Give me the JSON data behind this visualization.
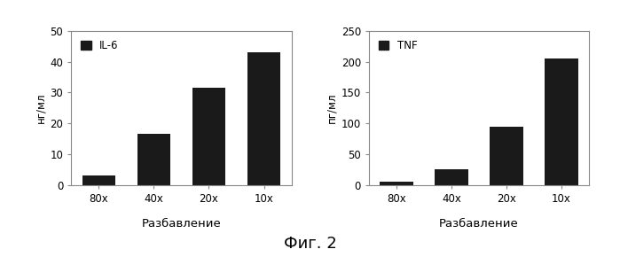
{
  "chart1": {
    "categories": [
      "80x",
      "40x",
      "20x",
      "10x"
    ],
    "values": [
      3.2,
      16.5,
      31.5,
      43.0
    ],
    "ylabel": "нг/мл",
    "xlabel": "Разбавление",
    "legend_label": "IL-6",
    "ylim": [
      0,
      50
    ],
    "yticks": [
      0,
      10,
      20,
      30,
      40,
      50
    ]
  },
  "chart2": {
    "categories": [
      "80x",
      "40x",
      "20x",
      "10x"
    ],
    "values": [
      5.0,
      25.0,
      95.0,
      205.0
    ],
    "ylabel": "пг/мл",
    "xlabel": "Разбавление",
    "legend_label": "TNF",
    "ylim": [
      0,
      250
    ],
    "yticks": [
      0,
      50,
      100,
      150,
      200,
      250
    ]
  },
  "caption": "Фиг. 2",
  "bar_color": "#1a1a1a",
  "plot_bg": "#ffffff",
  "fig_bg": "#ffffff",
  "box_color": "#888888"
}
